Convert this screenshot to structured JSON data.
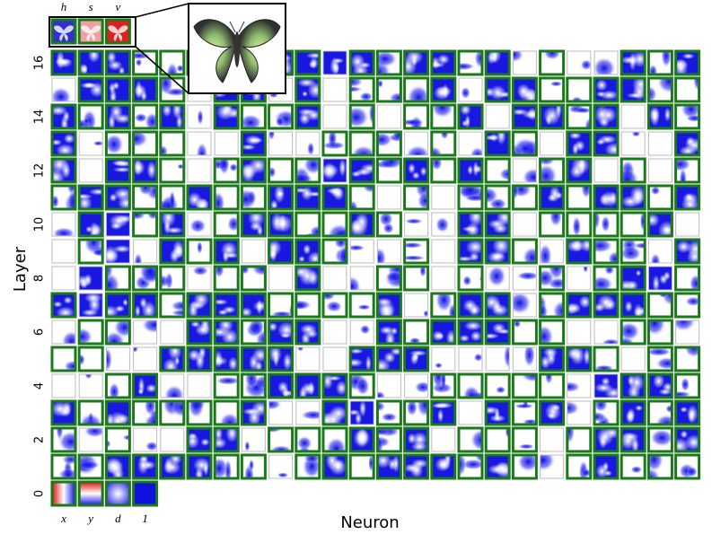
{
  "output_labels": [
    "h",
    "s",
    "v"
  ],
  "input_labels": [
    "x",
    "y",
    "d",
    "1"
  ],
  "y_axis": {
    "label": "Layer",
    "ticks": [
      0,
      2,
      4,
      6,
      8,
      10,
      12,
      14,
      16
    ]
  },
  "x_axis": {
    "label": "Neuron"
  }
}
